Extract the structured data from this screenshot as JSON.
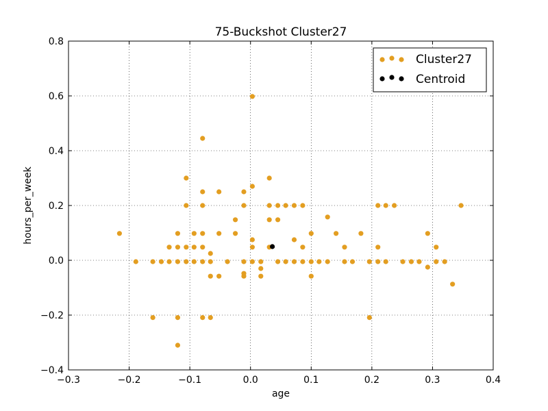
{
  "chart_data": {
    "type": "scatter",
    "title": "75-Buckshot Cluster27",
    "xlabel": "age",
    "ylabel": "hours_per_week",
    "xlim": [
      -0.3,
      0.4
    ],
    "ylim": [
      -0.4,
      0.8
    ],
    "xticks": [
      -0.3,
      -0.2,
      -0.1,
      0.0,
      0.1,
      0.2,
      0.3,
      0.4
    ],
    "yticks": [
      -0.4,
      -0.2,
      0.0,
      0.2,
      0.4,
      0.6,
      0.8
    ],
    "xtick_labels": [
      "−0.3",
      "−0.2",
      "−0.1",
      "0.0",
      "0.1",
      "0.2",
      "0.3",
      "0.4"
    ],
    "ytick_labels": [
      "−0.4",
      "−0.2",
      "0.0",
      "0.2",
      "0.4",
      "0.6",
      "0.8"
    ],
    "grid": true,
    "legend_position": "top-right",
    "series": [
      {
        "name": "Cluster27",
        "color": "#e39e21",
        "points": [
          [
            -0.216,
            0.098
          ],
          [
            -0.189,
            -0.005
          ],
          [
            -0.161,
            -0.005
          ],
          [
            -0.161,
            -0.209
          ],
          [
            -0.147,
            -0.005
          ],
          [
            -0.134,
            0.048
          ],
          [
            -0.134,
            -0.005
          ],
          [
            -0.12,
            0.098
          ],
          [
            -0.12,
            0.048
          ],
          [
            -0.12,
            -0.005
          ],
          [
            -0.12,
            -0.209
          ],
          [
            -0.12,
            -0.31
          ],
          [
            -0.106,
            0.3
          ],
          [
            -0.106,
            0.2
          ],
          [
            -0.106,
            0.048
          ],
          [
            -0.106,
            -0.005
          ],
          [
            -0.093,
            0.098
          ],
          [
            -0.093,
            0.048
          ],
          [
            -0.093,
            -0.005
          ],
          [
            -0.079,
            0.445
          ],
          [
            -0.079,
            0.25
          ],
          [
            -0.079,
            0.2
          ],
          [
            -0.079,
            0.098
          ],
          [
            -0.079,
            0.048
          ],
          [
            -0.079,
            -0.005
          ],
          [
            -0.079,
            -0.209
          ],
          [
            -0.066,
            0.025
          ],
          [
            -0.066,
            -0.005
          ],
          [
            -0.066,
            -0.058
          ],
          [
            -0.066,
            -0.209
          ],
          [
            -0.052,
            0.25
          ],
          [
            -0.052,
            0.098
          ],
          [
            -0.052,
            -0.058
          ],
          [
            -0.038,
            -0.005
          ],
          [
            -0.025,
            0.148
          ],
          [
            -0.025,
            0.098
          ],
          [
            -0.011,
            0.25
          ],
          [
            -0.011,
            0.2
          ],
          [
            -0.011,
            -0.005
          ],
          [
            -0.011,
            -0.048
          ],
          [
            -0.011,
            -0.058
          ],
          [
            0.003,
            0.598
          ],
          [
            0.003,
            0.27
          ],
          [
            0.003,
            0.075
          ],
          [
            0.003,
            0.048
          ],
          [
            0.003,
            -0.005
          ],
          [
            0.017,
            -0.005
          ],
          [
            0.017,
            -0.03
          ],
          [
            0.017,
            -0.058
          ],
          [
            0.031,
            0.3
          ],
          [
            0.031,
            0.2
          ],
          [
            0.031,
            0.148
          ],
          [
            0.031,
            0.048
          ],
          [
            0.045,
            0.2
          ],
          [
            0.045,
            0.148
          ],
          [
            0.045,
            -0.005
          ],
          [
            0.058,
            0.2
          ],
          [
            0.058,
            -0.005
          ],
          [
            0.072,
            0.2
          ],
          [
            0.072,
            0.075
          ],
          [
            0.072,
            -0.005
          ],
          [
            0.086,
            0.2
          ],
          [
            0.086,
            0.048
          ],
          [
            0.086,
            -0.005
          ],
          [
            0.1,
            0.098
          ],
          [
            0.1,
            -0.005
          ],
          [
            0.1,
            -0.058
          ],
          [
            0.113,
            -0.005
          ],
          [
            0.127,
            0.158
          ],
          [
            0.127,
            -0.005
          ],
          [
            0.141,
            0.098
          ],
          [
            0.155,
            0.048
          ],
          [
            0.155,
            -0.005
          ],
          [
            0.168,
            -0.005
          ],
          [
            0.182,
            0.098
          ],
          [
            0.196,
            -0.005
          ],
          [
            0.196,
            -0.209
          ],
          [
            0.21,
            0.2
          ],
          [
            0.21,
            0.048
          ],
          [
            0.21,
            -0.005
          ],
          [
            0.223,
            0.2
          ],
          [
            0.223,
            -0.005
          ],
          [
            0.237,
            0.2
          ],
          [
            0.251,
            -0.005
          ],
          [
            0.265,
            -0.005
          ],
          [
            0.278,
            -0.005
          ],
          [
            0.292,
            0.098
          ],
          [
            0.292,
            -0.025
          ],
          [
            0.306,
            0.048
          ],
          [
            0.306,
            -0.005
          ],
          [
            0.32,
            -0.005
          ],
          [
            0.333,
            -0.087
          ],
          [
            0.347,
            0.2
          ]
        ]
      },
      {
        "name": "Centroid",
        "color": "#000000",
        "points": [
          [
            0.036,
            0.05
          ]
        ]
      }
    ]
  }
}
